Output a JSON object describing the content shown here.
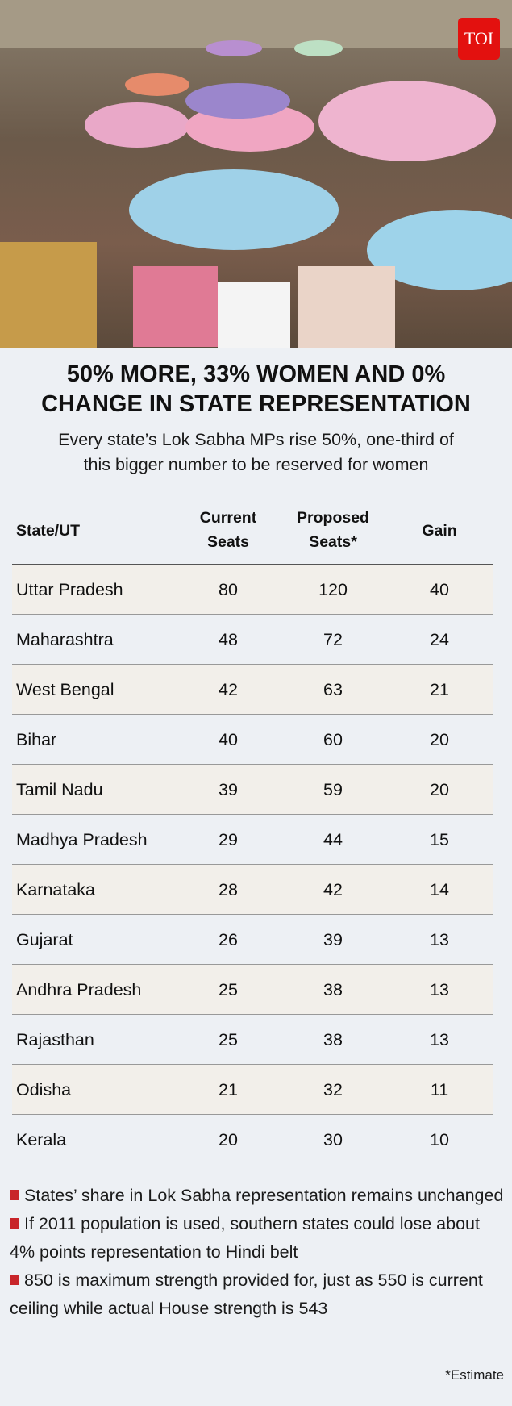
{
  "logo": {
    "text": "TOI",
    "color": "#e3110f"
  },
  "photo": {
    "description_icon": "protest-umbrellas-photo"
  },
  "title": {
    "line1": "50% MORE, 33% WOMEN AND 0%",
    "line2": "CHANGE IN STATE REPRESENTATION"
  },
  "subtitle": {
    "line1": "Every state’s Lok Sabha MPs rise 50%, one-third of",
    "line2": "this bigger number to be reserved for women"
  },
  "table": {
    "headers": {
      "state": "State/UT",
      "current1": "Current",
      "current2": "Seats",
      "proposed1": "Proposed",
      "proposed2": "Seats*",
      "gain": "Gain"
    },
    "rows": [
      [
        "Uttar Pradesh",
        "80",
        "120",
        "40"
      ],
      [
        "Maharashtra",
        "48",
        "72",
        "24"
      ],
      [
        "West Bengal",
        "42",
        "63",
        "21"
      ],
      [
        "Bihar",
        "40",
        "60",
        "20"
      ],
      [
        "Tamil Nadu",
        "39",
        "59",
        "20"
      ],
      [
        "Madhya Pradesh",
        "29",
        "44",
        "15"
      ],
      [
        "Karnataka",
        "28",
        "42",
        "14"
      ],
      [
        "Gujarat",
        "26",
        "39",
        "13"
      ],
      [
        "Andhra Pradesh",
        "25",
        "38",
        "13"
      ],
      [
        "Rajasthan",
        "25",
        "38",
        "13"
      ],
      [
        "Odisha",
        "21",
        "32",
        "11"
      ],
      [
        "Kerala",
        "20",
        "30",
        "10"
      ]
    ]
  },
  "notes": [
    "States’ share in Lok Sabha representation remains unchanged",
    "If 2011 population is used, southern states could lose about 4% points representation to Hindi belt",
    "850 is maximum strength provided for, just as 550 is current ceiling while actual House strength is 543"
  ],
  "footnote": "*Estimate",
  "colors": {
    "accent": "#c8252a",
    "background": "#edf0f4",
    "row_alt": "#f2efea"
  }
}
